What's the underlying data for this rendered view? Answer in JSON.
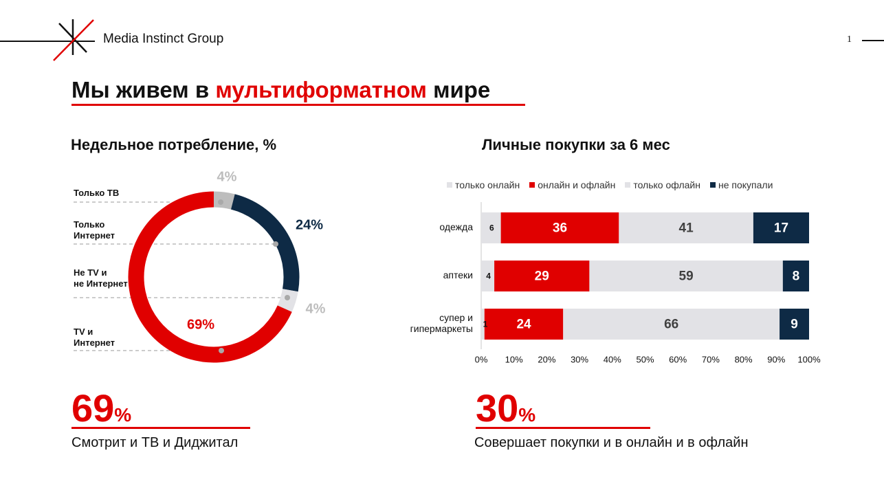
{
  "header": {
    "brand": "Media Instinct Group",
    "page_number": "1"
  },
  "title": {
    "part1": "Мы живем в ",
    "highlight": "мультиформатном",
    "part2": " мире"
  },
  "left": {
    "section_title": "Недельное потребление, %",
    "donut_labels": [
      {
        "lines": [
          "Только ТВ"
        ]
      },
      {
        "lines": [
          "Только",
          "Интернет"
        ]
      },
      {
        "lines": [
          "Не TV и",
          "не Интернет"
        ]
      },
      {
        "lines": [
          "TV и",
          "Интернет"
        ]
      }
    ],
    "kpi": {
      "value": "69",
      "unit": "%",
      "caption": "Смотрит и ТВ и Диджитал"
    }
  },
  "right": {
    "section_title": "Личные покупки за 6 мес",
    "kpi": {
      "value": "30",
      "unit": "%",
      "caption": "Совершает покупки и в онлайн и в офлайн"
    }
  },
  "colors": {
    "red": "#e00000",
    "navy": "#0e2a45",
    "light": "#e2e2e6",
    "gray": "#bdbdbd"
  },
  "chart_data": [
    {
      "type": "pie",
      "subtype": "donut",
      "title": "Недельное потребление, %",
      "slices": [
        {
          "name": "Только ТВ",
          "value": 4,
          "label": "4%",
          "color": "#bdbdbd"
        },
        {
          "name": "Только Интернет",
          "value": 24,
          "label": "24%",
          "color": "#0e2a45"
        },
        {
          "name": "Не TV и не Интернет",
          "value": 4,
          "label": "4%",
          "color": "#e2e2e6"
        },
        {
          "name": "TV и Интернет",
          "value": 69,
          "label": "69%",
          "color": "#e00000"
        }
      ]
    },
    {
      "type": "bar",
      "orientation": "horizontal",
      "stacked": true,
      "title": "Личные покупки за 6 мес",
      "categories": [
        [
          "одежда"
        ],
        [
          "аптеки"
        ],
        [
          "супер и",
          "гипермаркеты"
        ]
      ],
      "series": [
        {
          "name": "только онлайн",
          "color": "#e2e2e6",
          "text_color": "#111111",
          "values": [
            6,
            4,
            1
          ]
        },
        {
          "name": "онлайн и офлайн",
          "color": "#e00000",
          "text_color": "#ffffff",
          "values": [
            36,
            29,
            24
          ]
        },
        {
          "name": "только офлайн",
          "color": "#e2e2e6",
          "text_color": "#404040",
          "values": [
            41,
            59,
            66
          ]
        },
        {
          "name": "не покупали",
          "color": "#0e2a45",
          "text_color": "#ffffff",
          "values": [
            17,
            8,
            9
          ]
        }
      ],
      "xlim": [
        0,
        100
      ],
      "xticks": [
        "0%",
        "10%",
        "20%",
        "30%",
        "40%",
        "50%",
        "60%",
        "70%",
        "80%",
        "90%",
        "100%"
      ]
    }
  ]
}
